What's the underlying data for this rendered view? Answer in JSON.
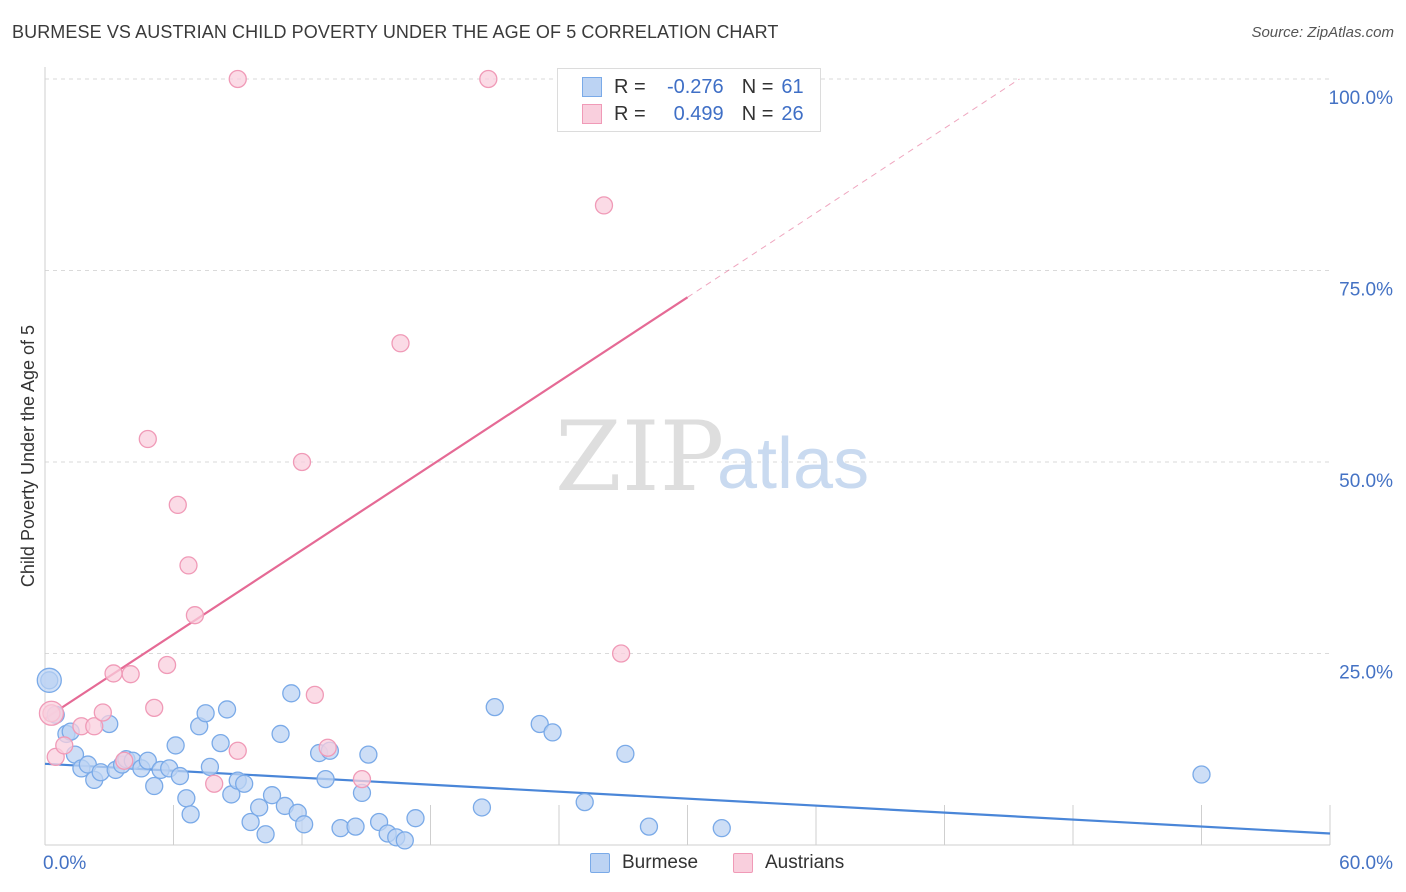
{
  "title": "BURMESE VS AUSTRIAN CHILD POVERTY UNDER THE AGE OF 5 CORRELATION CHART",
  "source": "Source: ZipAtlas.com",
  "watermark": {
    "zip": "ZIP",
    "atlas": "atlas"
  },
  "legend": {
    "rows": [
      {
        "r_label": "R =",
        "r_value": "-0.276",
        "n_label": "N =",
        "n_value": "61",
        "color": "#7aaae8",
        "fill": "#bcd3f3"
      },
      {
        "r_label": "R =",
        "r_value": "0.499",
        "n_label": "N =",
        "n_value": "26",
        "color": "#f09ab7",
        "fill": "#f9cfdd"
      }
    ]
  },
  "bottom_legend": [
    {
      "label": "Burmese",
      "color": "#7aaae8",
      "fill": "#bcd3f3"
    },
    {
      "label": "Austrians",
      "color": "#f09ab7",
      "fill": "#f9cfdd"
    }
  ],
  "chart_data": {
    "type": "scatter",
    "title": "BURMESE VS AUSTRIAN CHILD POVERTY UNDER THE AGE OF 5 CORRELATION CHART",
    "xlabel": "",
    "ylabel": "Child Poverty Under the Age of 5",
    "xlim": [
      0,
      60
    ],
    "ylim": [
      0,
      100
    ],
    "x_tick_labels": [
      "0.0%",
      "60.0%"
    ],
    "y_ticks": [
      25,
      50,
      75,
      100
    ],
    "y_tick_labels": [
      "25.0%",
      "50.0%",
      "75.0%",
      "100.0%"
    ],
    "grid": true,
    "series": [
      {
        "name": "Burmese",
        "color": "#4a86d8",
        "fill": "#bcd3f3",
        "points": [
          [
            0.2,
            21.5
          ],
          [
            0.5,
            17.0
          ],
          [
            1.0,
            14.5
          ],
          [
            1.2,
            14.8
          ],
          [
            1.4,
            11.8
          ],
          [
            1.7,
            10.0
          ],
          [
            2.0,
            10.5
          ],
          [
            2.3,
            8.5
          ],
          [
            2.6,
            9.5
          ],
          [
            3.0,
            15.8
          ],
          [
            3.3,
            9.8
          ],
          [
            3.6,
            10.5
          ],
          [
            3.8,
            11.2
          ],
          [
            4.1,
            11.0
          ],
          [
            4.5,
            10.0
          ],
          [
            4.8,
            11.0
          ],
          [
            5.1,
            7.7
          ],
          [
            5.4,
            9.8
          ],
          [
            5.8,
            10.0
          ],
          [
            6.1,
            13.0
          ],
          [
            6.3,
            9.0
          ],
          [
            6.6,
            6.1
          ],
          [
            6.8,
            4.0
          ],
          [
            7.2,
            15.5
          ],
          [
            7.5,
            17.2
          ],
          [
            7.7,
            10.2
          ],
          [
            8.2,
            13.3
          ],
          [
            8.5,
            17.7
          ],
          [
            8.7,
            6.6
          ],
          [
            9.0,
            8.4
          ],
          [
            9.3,
            8.0
          ],
          [
            9.6,
            3.0
          ],
          [
            10.0,
            4.9
          ],
          [
            10.3,
            1.4
          ],
          [
            10.6,
            6.5
          ],
          [
            11.0,
            14.5
          ],
          [
            11.2,
            5.1
          ],
          [
            11.5,
            19.8
          ],
          [
            11.8,
            4.2
          ],
          [
            12.1,
            2.7
          ],
          [
            12.8,
            12.0
          ],
          [
            13.1,
            8.6
          ],
          [
            13.3,
            12.3
          ],
          [
            13.8,
            2.2
          ],
          [
            14.5,
            2.4
          ],
          [
            14.8,
            6.8
          ],
          [
            15.1,
            11.8
          ],
          [
            15.6,
            3.0
          ],
          [
            16.0,
            1.5
          ],
          [
            16.4,
            1.0
          ],
          [
            16.8,
            0.6
          ],
          [
            17.3,
            3.5
          ],
          [
            20.4,
            4.9
          ],
          [
            21.0,
            18.0
          ],
          [
            23.1,
            15.8
          ],
          [
            23.7,
            14.7
          ],
          [
            25.2,
            5.6
          ],
          [
            27.1,
            11.9
          ],
          [
            28.2,
            2.4
          ],
          [
            31.6,
            2.2
          ],
          [
            54.0,
            9.2
          ]
        ],
        "trend": {
          "x": [
            0,
            60
          ],
          "y": [
            10.6,
            1.5
          ]
        }
      },
      {
        "name": "Austrians",
        "color": "#e56a95",
        "fill": "#f9cfdd",
        "points": [
          [
            0.3,
            17.2
          ],
          [
            0.5,
            11.5
          ],
          [
            0.9,
            13.0
          ],
          [
            1.7,
            15.5
          ],
          [
            2.3,
            15.5
          ],
          [
            2.7,
            17.3
          ],
          [
            3.2,
            22.4
          ],
          [
            3.7,
            11.0
          ],
          [
            4.0,
            22.3
          ],
          [
            4.8,
            53.0
          ],
          [
            5.1,
            17.9
          ],
          [
            5.7,
            23.5
          ],
          [
            6.2,
            44.4
          ],
          [
            6.7,
            36.5
          ],
          [
            7.0,
            30.0
          ],
          [
            7.9,
            8.0
          ],
          [
            9.0,
            12.3
          ],
          [
            9.0,
            100.0
          ],
          [
            12.0,
            50.0
          ],
          [
            12.6,
            19.6
          ],
          [
            13.2,
            12.7
          ],
          [
            14.8,
            8.6
          ],
          [
            16.6,
            65.5
          ],
          [
            20.7,
            100.0
          ],
          [
            26.1,
            83.5
          ],
          [
            26.9,
            25.0
          ]
        ],
        "trend": {
          "x": [
            0,
            30
          ],
          "y": [
            16.5,
            71.5
          ]
        },
        "trend_extension": {
          "x": [
            30,
            45.5
          ],
          "y": [
            71.5,
            100
          ]
        }
      }
    ]
  }
}
